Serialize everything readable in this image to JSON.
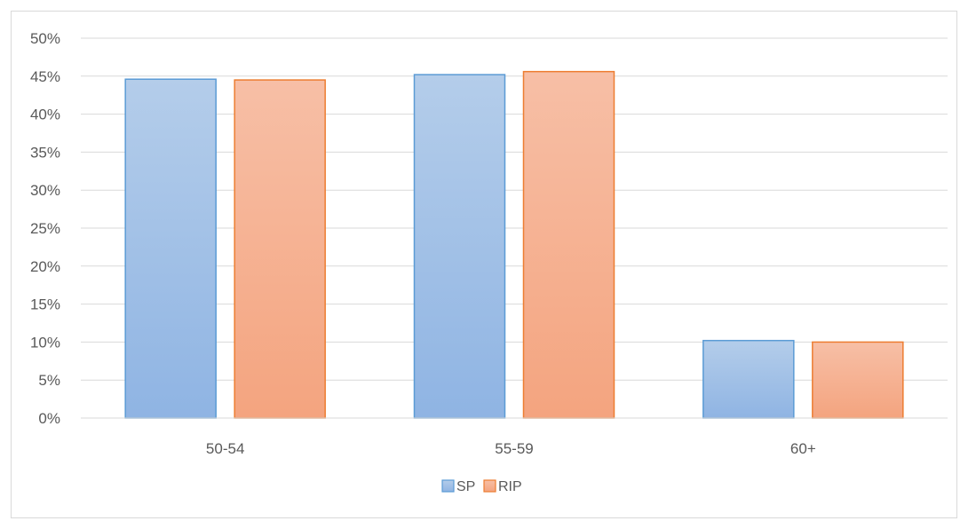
{
  "chart_data": {
    "type": "bar",
    "categories": [
      "50-54",
      "55-59",
      "60+"
    ],
    "series": [
      {
        "name": "SP",
        "values": [
          44.6,
          45.2,
          10.2
        ],
        "color": "#5b9bd5",
        "fill_top": "#b4cdea",
        "fill_bottom": "#8fb4e3"
      },
      {
        "name": "RIP",
        "values": [
          44.5,
          45.6,
          10.0
        ],
        "color": "#ed7d31",
        "fill_top": "#f7bfa6",
        "fill_bottom": "#f4a47f"
      }
    ],
    "ylim": [
      0,
      50
    ],
    "yticks": [
      0,
      5,
      10,
      15,
      20,
      25,
      30,
      35,
      40,
      45,
      50
    ],
    "ytick_labels": [
      "0%",
      "5%",
      "10%",
      "15%",
      "20%",
      "25%",
      "30%",
      "35%",
      "40%",
      "45%",
      "50%"
    ],
    "grid": true,
    "legend_position": "bottom",
    "title": "",
    "xlabel": "",
    "ylabel": ""
  }
}
